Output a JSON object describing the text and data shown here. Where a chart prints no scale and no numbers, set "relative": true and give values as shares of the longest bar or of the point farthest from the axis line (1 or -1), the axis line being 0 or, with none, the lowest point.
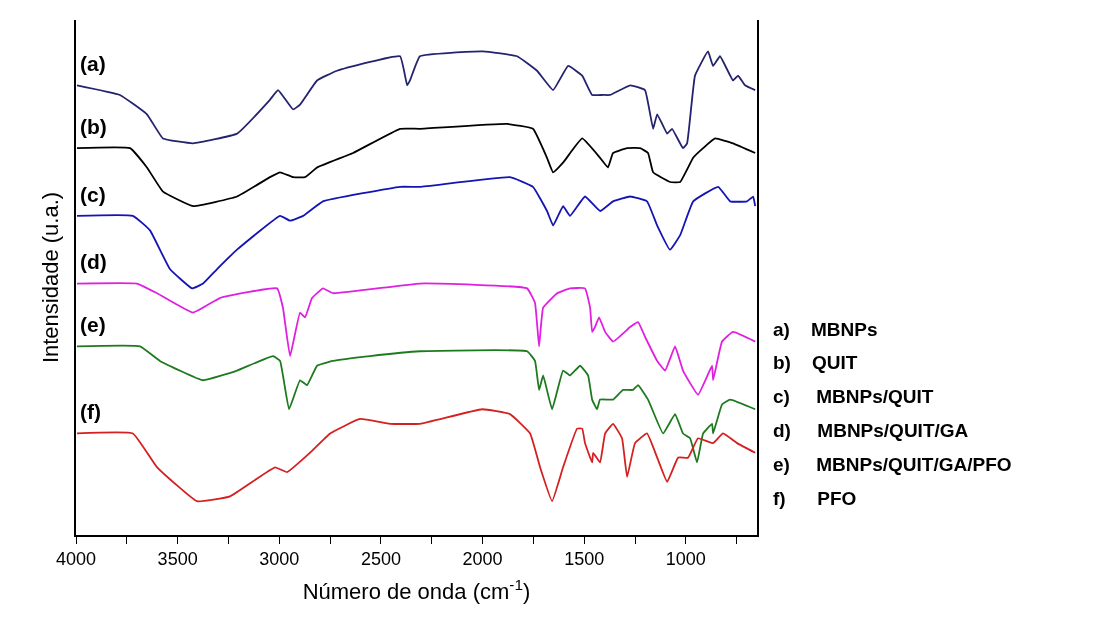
{
  "chart_data": {
    "type": "line",
    "relative": true,
    "xlabel": "Número de onda (cm$^{-1}$)",
    "ylabel": "Intensidade (u.a.)",
    "xlim": [
      4000,
      650
    ],
    "xticks": [
      4000,
      {
        "value": 3750,
        "label": null
      },
      3500,
      {
        "value": 3250,
        "label": null
      },
      3000,
      {
        "value": 2750,
        "label": null
      },
      2500,
      {
        "value": 2250,
        "label": null
      },
      2000,
      {
        "value": 1750,
        "label": null
      },
      1500,
      {
        "value": 1250,
        "label": null
      },
      1000,
      {
        "value": 750,
        "label": null
      }
    ],
    "legend": false,
    "marker": "none",
    "line_style": "solid",
    "series": [
      {
        "name": "(a)",
        "color": "#23236e",
        "x": [
          3995,
          3784,
          3651,
          3572,
          3424,
          3208,
          3046,
          3006,
          2932,
          2898,
          2814,
          2716,
          2406,
          2371,
          2357,
          2308,
          1998,
          1830,
          1732,
          1653,
          1579,
          1510,
          1461,
          1407,
          1373,
          1274,
          1201,
          1161,
          1141,
          1092,
          1068,
          1014,
          994,
          955,
          891,
          866,
          832,
          768,
          743,
          709,
          659
        ],
        "values": [
          0.93,
          0.91,
          0.87,
          0.82,
          0.81,
          0.83,
          0.9,
          0.92,
          0.88,
          0.89,
          0.94,
          0.96,
          0.99,
          0.93,
          0.94,
          0.99,
          1.0,
          0.99,
          0.96,
          0.92,
          0.97,
          0.95,
          0.91,
          0.91,
          0.91,
          0.93,
          0.92,
          0.84,
          0.87,
          0.83,
          0.84,
          0.8,
          0.81,
          0.95,
          1.0,
          0.97,
          0.99,
          0.94,
          0.95,
          0.93,
          0.92
        ]
      },
      {
        "name": "(b)",
        "color": "#000000",
        "x": [
          3995,
          3734,
          3651,
          3572,
          3424,
          3208,
          3046,
          2996,
          2932,
          2873,
          2814,
          2637,
          2406,
          2308,
          1879,
          1752,
          1683,
          1653,
          1604,
          1510,
          1422,
          1383,
          1358,
          1289,
          1225,
          1186,
          1161,
          1078,
          1028,
          964,
          915,
          856,
          768,
          659
        ],
        "values": [
          0.8,
          0.8,
          0.76,
          0.71,
          0.68,
          0.7,
          0.74,
          0.75,
          0.74,
          0.74,
          0.76,
          0.79,
          0.84,
          0.84,
          0.85,
          0.84,
          0.78,
          0.75,
          0.77,
          0.82,
          0.78,
          0.76,
          0.79,
          0.8,
          0.8,
          0.79,
          0.75,
          0.73,
          0.73,
          0.78,
          0.8,
          0.82,
          0.81,
          0.79
        ]
      },
      {
        "name": "(c)",
        "color": "#1414b4",
        "x": [
          3995,
          3720,
          3636,
          3538,
          3429,
          3375,
          3306,
          3208,
          2996,
          2947,
          2883,
          2785,
          2406,
          2308,
          1865,
          1752,
          1683,
          1653,
          1604,
          1570,
          1496,
          1422,
          1358,
          1274,
          1191,
          1141,
          1078,
          1028,
          964,
          841,
          782,
          699,
          669,
          659
        ],
        "values": [
          0.66,
          0.66,
          0.63,
          0.55,
          0.51,
          0.52,
          0.55,
          0.59,
          0.66,
          0.65,
          0.66,
          0.69,
          0.72,
          0.72,
          0.74,
          0.72,
          0.67,
          0.64,
          0.68,
          0.66,
          0.7,
          0.67,
          0.69,
          0.7,
          0.69,
          0.64,
          0.59,
          0.62,
          0.69,
          0.72,
          0.69,
          0.69,
          0.7,
          0.68
        ]
      },
      {
        "name": "(d)",
        "color": "#e020e0",
        "x": [
          3995,
          3700,
          3601,
          3424,
          3292,
          3011,
          2982,
          2947,
          2898,
          2873,
          2839,
          2785,
          2736,
          2308,
          1781,
          1742,
          1722,
          1702,
          1633,
          1570,
          1496,
          1471,
          1461,
          1447,
          1427,
          1397,
          1358,
          1274,
          1235,
          1201,
          1141,
          1102,
          1053,
          1014,
          940,
          871,
          866,
          822,
          768,
          659
        ],
        "values": [
          0.52,
          0.52,
          0.5,
          0.46,
          0.49,
          0.51,
          0.47,
          0.37,
          0.46,
          0.45,
          0.49,
          0.51,
          0.5,
          0.52,
          0.51,
          0.48,
          0.39,
          0.47,
          0.5,
          0.51,
          0.51,
          0.47,
          0.42,
          0.43,
          0.45,
          0.42,
          0.4,
          0.43,
          0.44,
          0.41,
          0.36,
          0.34,
          0.39,
          0.34,
          0.29,
          0.35,
          0.32,
          0.4,
          0.42,
          0.4
        ]
      },
      {
        "name": "(e)",
        "color": "#1e7a1e",
        "x": [
          3995,
          3685,
          3587,
          3375,
          3208,
          3031,
          2996,
          2952,
          2898,
          2863,
          2814,
          2736,
          2554,
          2308,
          1781,
          1742,
          1722,
          1702,
          1658,
          1604,
          1570,
          1520,
          1481,
          1461,
          1437,
          1422,
          1358,
          1309,
          1260,
          1235,
          1186,
          1112,
          1053,
          1014,
          979,
          945,
          915,
          871,
          866,
          822,
          782,
          659
        ],
        "values": [
          0.39,
          0.39,
          0.36,
          0.32,
          0.34,
          0.37,
          0.36,
          0.26,
          0.32,
          0.31,
          0.35,
          0.36,
          0.37,
          0.38,
          0.38,
          0.36,
          0.3,
          0.33,
          0.26,
          0.34,
          0.33,
          0.35,
          0.33,
          0.28,
          0.26,
          0.28,
          0.28,
          0.3,
          0.3,
          0.31,
          0.28,
          0.21,
          0.25,
          0.21,
          0.2,
          0.15,
          0.21,
          0.23,
          0.21,
          0.27,
          0.28,
          0.26
        ]
      },
      {
        "name": "(f)",
        "color": "#d42020",
        "x": [
          3995,
          3720,
          3601,
          3405,
          3242,
          3021,
          2962,
          2849,
          2750,
          2603,
          2455,
          2308,
          2002,
          1865,
          1766,
          1717,
          1658,
          1604,
          1535,
          1510,
          1496,
          1461,
          1456,
          1422,
          1397,
          1358,
          1314,
          1289,
          1250,
          1191,
          1141,
          1092,
          1038,
          989,
          940,
          866,
          817,
          748,
          659
        ],
        "values": [
          0.21,
          0.21,
          0.14,
          0.07,
          0.08,
          0.14,
          0.13,
          0.17,
          0.21,
          0.24,
          0.23,
          0.23,
          0.26,
          0.25,
          0.21,
          0.14,
          0.07,
          0.14,
          0.22,
          0.22,
          0.19,
          0.15,
          0.17,
          0.15,
          0.21,
          0.23,
          0.2,
          0.12,
          0.19,
          0.21,
          0.16,
          0.11,
          0.16,
          0.16,
          0.2,
          0.19,
          0.21,
          0.19,
          0.17
        ]
      }
    ],
    "annotations": [
      "a)    MBNPs",
      "b)    QUIT",
      "c)     MBNPs/QUIT",
      "d)     MBNPs/QUIT/GA",
      "e)     MBNPs/QUIT/GA/PFO",
      "f)      PFO"
    ]
  }
}
